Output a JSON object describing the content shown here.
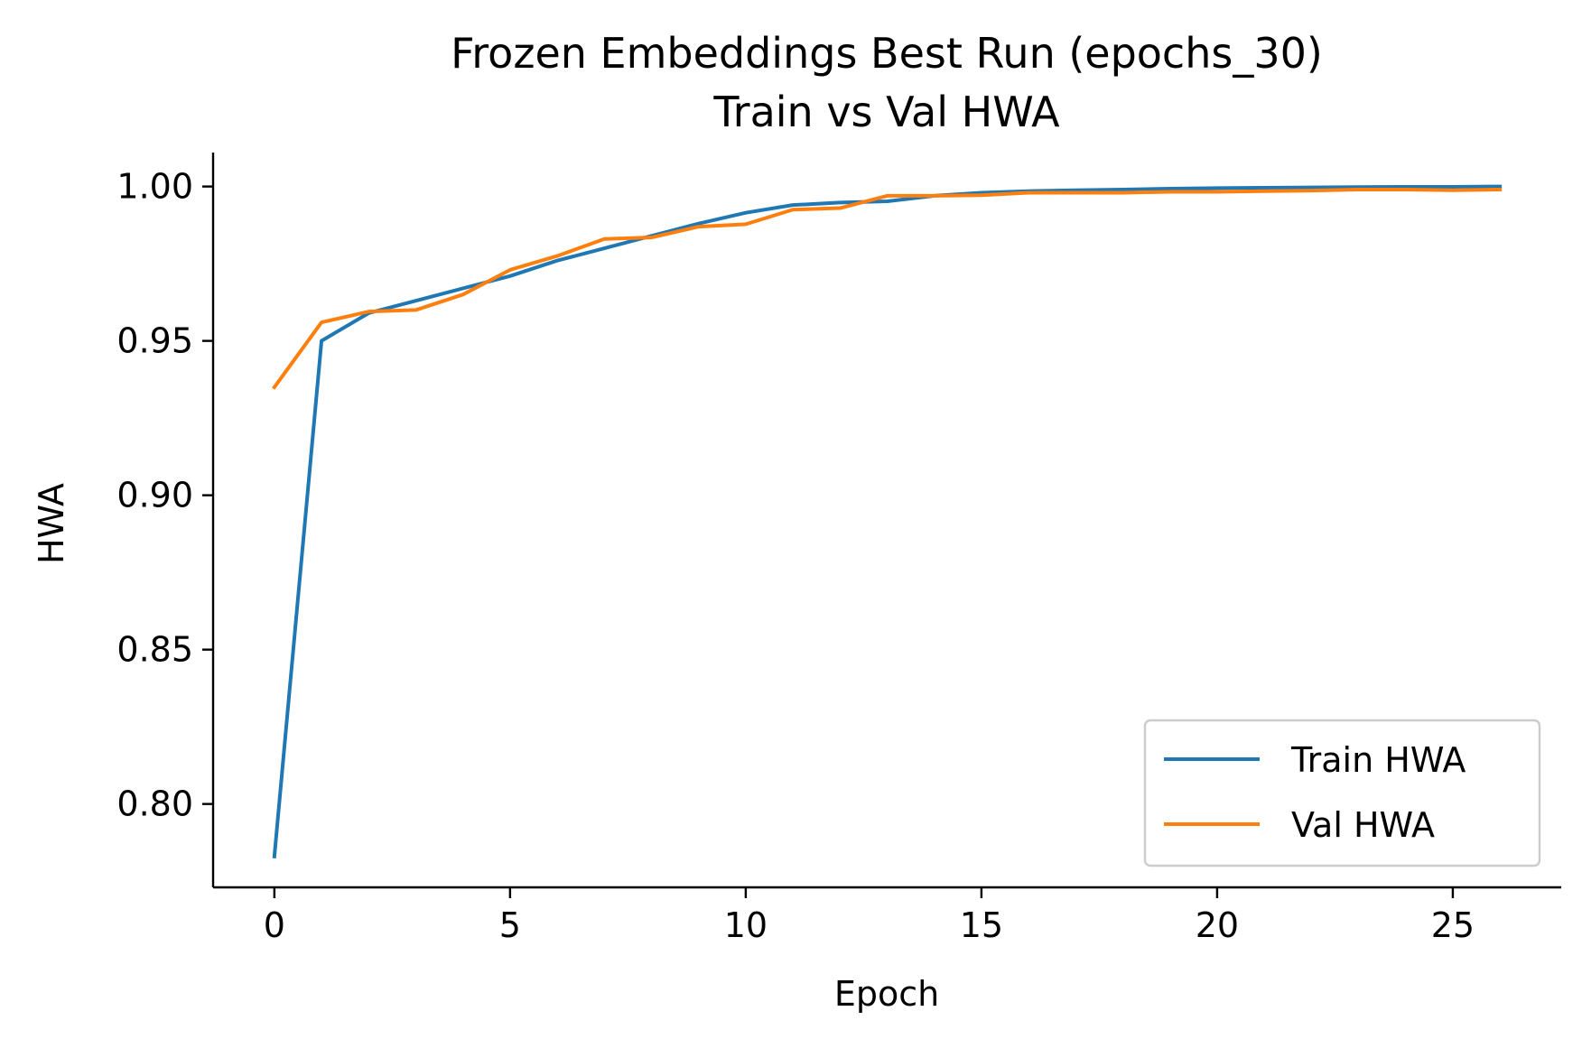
{
  "chart_data": {
    "type": "line",
    "title": "Frozen Embeddings Best Run (epochs_30)",
    "subtitle": "Train vs Val HWA",
    "xlabel": "Epoch",
    "ylabel": "HWA",
    "xlim": [
      -1.3,
      27.3
    ],
    "ylim": [
      0.773,
      1.011
    ],
    "xticks": [
      0,
      5,
      10,
      15,
      20,
      25
    ],
    "yticks": [
      0.8,
      0.85,
      0.9,
      0.95,
      1.0
    ],
    "xtick_labels": [
      "0",
      "5",
      "10",
      "15",
      "20",
      "25"
    ],
    "ytick_labels": [
      "0.80",
      "0.85",
      "0.90",
      "0.95",
      "1.00"
    ],
    "grid": false,
    "legend_position": "bottom-right",
    "x": [
      0,
      1,
      2,
      3,
      4,
      5,
      6,
      7,
      8,
      9,
      10,
      11,
      12,
      13,
      14,
      15,
      16,
      17,
      18,
      19,
      20,
      21,
      22,
      23,
      24,
      25,
      26
    ],
    "series": [
      {
        "name": "Train HWA",
        "color": "#1f77b4",
        "values": [
          0.783,
          0.95,
          0.959,
          0.963,
          0.967,
          0.971,
          0.976,
          0.98,
          0.984,
          0.988,
          0.9915,
          0.994,
          0.9948,
          0.9952,
          0.997,
          0.998,
          0.9985,
          0.9988,
          0.999,
          0.9993,
          0.9995,
          0.9996,
          0.9997,
          0.9998,
          0.9999,
          0.9999,
          1.0
        ]
      },
      {
        "name": "Val HWA",
        "color": "#ff7f0e",
        "values": [
          0.935,
          0.956,
          0.9595,
          0.96,
          0.965,
          0.973,
          0.9775,
          0.983,
          0.9835,
          0.987,
          0.9878,
          0.9925,
          0.993,
          0.997,
          0.997,
          0.9972,
          0.998,
          0.998,
          0.998,
          0.9983,
          0.9983,
          0.9985,
          0.9987,
          0.999,
          0.999,
          0.9988,
          0.999
        ]
      }
    ]
  }
}
